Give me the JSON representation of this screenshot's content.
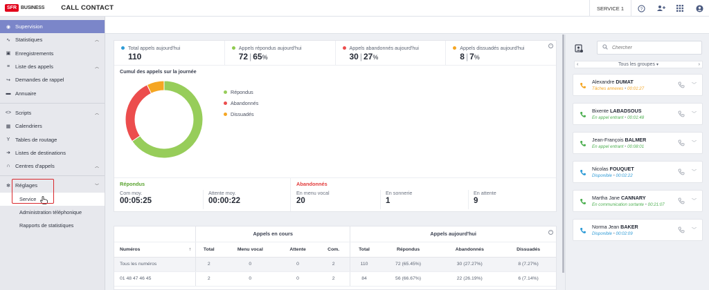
{
  "topbar": {
    "logo_brand": "SFR",
    "logo_sub": "BUSINESS",
    "app_title": "CALL CONTACT",
    "service": "SERVICE 1"
  },
  "sidebar": {
    "supervision": "Supervision",
    "statistiques": "Statistiques",
    "enregistrements": "Enregistrements",
    "liste_appels": "Liste des appels",
    "demandes_rappel": "Demandes de rappel",
    "annuaire": "Annuaire",
    "scripts": "Scripts",
    "calendriers": "Calendriers",
    "tables_routage": "Tables de routage",
    "listes_destinations": "Listes de destinations",
    "centres_appels": "Centres d'appels",
    "reglages": "Réglages",
    "service": "Service",
    "admin_tel": "Administration téléphonique",
    "rapports_stats": "Rapports de statistiques"
  },
  "kpis": [
    {
      "label": "Total appels aujourd'hui",
      "value": "110",
      "pct": "",
      "color": "#2e9bd6"
    },
    {
      "label": "Appels répondus aujourd'hui",
      "value": "72",
      "pct": "65",
      "color": "#8fca4f"
    },
    {
      "label": "Appels abandonnés aujourd'hui",
      "value": "30",
      "pct": "27",
      "color": "#ec4d4d"
    },
    {
      "label": "Appels dissuadés aujourd'hui",
      "value": "8",
      "pct": "7",
      "color": "#f5a623"
    }
  ],
  "pct_sign": "%",
  "chart_data": {
    "type": "pie",
    "title": "Cumul des appels sur la journée",
    "categories": [
      "Répondus",
      "Abandonnés",
      "Dissuadés"
    ],
    "values": [
      72,
      30,
      8
    ],
    "colors": [
      "#97cd5a",
      "#ec4d4d",
      "#f5a623"
    ],
    "donut": true,
    "legend": "right"
  },
  "stats": {
    "repondus_title": "Répondus",
    "abandonnes_title": "Abandonnés",
    "com_moy_label": "Com moy.",
    "com_moy_value": "00:05:25",
    "attente_moy_label": "Attente moy.",
    "attente_moy_value": "00:00:22",
    "menu_vocal_label": "En menu vocal",
    "menu_vocal_value": "20",
    "sonnerie_label": "En sonnerie",
    "sonnerie_value": "1",
    "attente_label": "En attente",
    "attente_value": "9"
  },
  "table": {
    "group_current": "Appels en cours",
    "group_today": "Appels aujourd'hui",
    "columns": [
      "Numéros",
      "Total",
      "Menu vocal",
      "Attente",
      "Com.",
      "Total",
      "Répondus",
      "Abandonnés",
      "Dissuadés"
    ],
    "sort_icon": "↑",
    "rows": [
      [
        "Tous les numéros",
        "2",
        "0",
        "0",
        "2",
        "110",
        "72 (65.45%)",
        "30 (27.27%)",
        "8 (7.27%)"
      ],
      [
        "01 48 47 46 45",
        "2",
        "0",
        "0",
        "2",
        "84",
        "56 (66.67%)",
        "22 (26.19%)",
        "6 (7.14%)"
      ]
    ]
  },
  "right": {
    "search_placeholder": "Chercher",
    "groups_label": "Tous les groupes",
    "agents": [
      {
        "first": "Alexandre",
        "last": "DUMAT",
        "status": "Tâches annexes",
        "time": "00:01:27",
        "color": "#f5a623",
        "icon": "phone-pause-icon"
      },
      {
        "first": "Bixente",
        "last": "LABADSOUS",
        "status": "En appel entrant",
        "time": "00:01:48",
        "color": "#4caf50",
        "icon": "phone-incoming-icon"
      },
      {
        "first": "Jean-François",
        "last": "BALMER",
        "status": "En appel entrant",
        "time": "00:08:01",
        "color": "#4caf50",
        "icon": "phone-incoming-icon"
      },
      {
        "first": "Nicolas",
        "last": "FOUQUET",
        "status": "Disponible",
        "time": "00:02:22",
        "color": "#2e9bd6",
        "icon": "phone-available-icon"
      },
      {
        "first": "Martha Jane",
        "last": "CANNARY",
        "status": "En communication sortante",
        "time": "00:21:07",
        "color": "#4caf50",
        "icon": "phone-outgoing-icon"
      },
      {
        "first": "Norma Jean",
        "last": "BAKER",
        "status": "Disponible",
        "time": "00:02:09",
        "color": "#2e9bd6",
        "icon": "phone-available-icon"
      }
    ]
  }
}
